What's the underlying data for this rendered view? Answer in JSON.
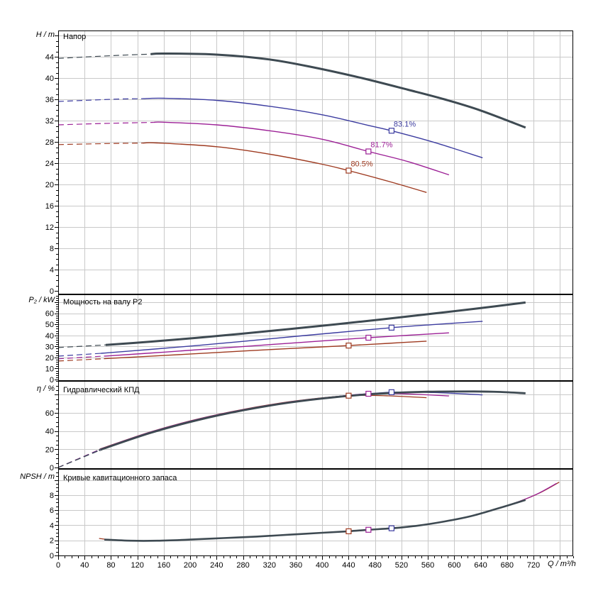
{
  "colors": {
    "main": "#3E4A52",
    "blue": "#3C3CA0",
    "magenta": "#9C2096",
    "red": "#9E3A20",
    "grid": "#C9C9C9",
    "frame": "#000000",
    "text": "#000000",
    "background": "#FFFFFF"
  },
  "chart_data": {
    "type": "line",
    "x": {
      "label": "Q / m³/h",
      "ticks": [
        0,
        40,
        80,
        120,
        160,
        200,
        240,
        280,
        320,
        360,
        400,
        440,
        480,
        520,
        560,
        600,
        640,
        680,
        720
      ],
      "minor_step": 10,
      "max": 780
    },
    "panels": [
      {
        "title": "Напор",
        "ylabel": "H / m",
        "yticks": [
          0,
          4,
          8,
          12,
          16,
          20,
          24,
          28,
          32,
          36,
          40,
          44
        ],
        "ylim": [
          0,
          48.9
        ],
        "series": [
          {
            "name": "series-4",
            "color": "red",
            "width": 1.4,
            "dash_until": 128,
            "points": [
              [
                0,
                27.5
              ],
              [
                80,
                27.7
              ],
              [
                150,
                27.8
              ],
              [
                240,
                27.1
              ],
              [
                320,
                25.7
              ],
              [
                400,
                23.8
              ],
              [
                440,
                22.6
              ],
              [
                500,
                20.6
              ],
              [
                558,
                18.5
              ]
            ]
          },
          {
            "name": "series-3",
            "color": "magenta",
            "width": 1.4,
            "dash_until": 145,
            "points": [
              [
                0,
                31.2
              ],
              [
                80,
                31.5
              ],
              [
                160,
                31.7
              ],
              [
                240,
                31.2
              ],
              [
                320,
                30.1
              ],
              [
                400,
                28.5
              ],
              [
                470,
                26.2
              ],
              [
                530,
                24.3
              ],
              [
                592,
                21.8
              ]
            ]
          },
          {
            "name": "series-2",
            "color": "blue",
            "width": 1.4,
            "dash_until": 128,
            "points": [
              [
                0,
                35.6
              ],
              [
                80,
                36.0
              ],
              [
                160,
                36.2
              ],
              [
                240,
                35.8
              ],
              [
                320,
                34.7
              ],
              [
                400,
                33.1
              ],
              [
                470,
                31.1
              ],
              [
                505,
                30.1
              ],
              [
                570,
                27.9
              ],
              [
                643,
                25.0
              ]
            ]
          },
          {
            "name": "series-1-main",
            "color": "main",
            "width": 3,
            "dash_until": 140,
            "points": [
              [
                0,
                43.7
              ],
              [
                80,
                44.2
              ],
              [
                160,
                44.6
              ],
              [
                240,
                44.4
              ],
              [
                320,
                43.5
              ],
              [
                387,
                42.0
              ],
              [
                460,
                40.0
              ],
              [
                530,
                37.8
              ],
              [
                585,
                36.0
              ],
              [
                640,
                33.9
              ],
              [
                708,
                30.7
              ]
            ]
          }
        ],
        "markers": [
          {
            "q": 440,
            "v": 22.6,
            "color": "red",
            "label": "80.5%"
          },
          {
            "q": 470,
            "v": 26.2,
            "color": "magenta",
            "label": "81.7%"
          },
          {
            "q": 505,
            "v": 30.1,
            "color": "blue",
            "label": "83.1%"
          }
        ]
      },
      {
        "title": "Мощность на валу P2",
        "ylabel": "P₂ / kW",
        "yticks": [
          0,
          10,
          20,
          30,
          40,
          50,
          60
        ],
        "ylim": [
          0,
          77
        ],
        "series": [
          {
            "name": "series-4",
            "color": "red",
            "width": 1.4,
            "dash_until": 70,
            "points": [
              [
                0,
                16.8
              ],
              [
                80,
                19.2
              ],
              [
                160,
                21.8
              ],
              [
                240,
                24.5
              ],
              [
                320,
                27.1
              ],
              [
                400,
                29.6
              ],
              [
                440,
                30.8
              ],
              [
                500,
                32.8
              ],
              [
                558,
                34.8
              ]
            ]
          },
          {
            "name": "series-3",
            "color": "magenta",
            "width": 1.4,
            "dash_until": 70,
            "points": [
              [
                0,
                18.8
              ],
              [
                80,
                21.6
              ],
              [
                160,
                24.8
              ],
              [
                240,
                28.2
              ],
              [
                320,
                31.6
              ],
              [
                400,
                35.0
              ],
              [
                470,
                37.9
              ],
              [
                530,
                40.1
              ],
              [
                592,
                42.3
              ]
            ]
          },
          {
            "name": "series-2",
            "color": "blue",
            "width": 1.4,
            "dash_until": 70,
            "points": [
              [
                0,
                21.2
              ],
              [
                70,
                24.0
              ],
              [
                140,
                27.3
              ],
              [
                210,
                30.8
              ],
              [
                280,
                34.6
              ],
              [
                350,
                38.6
              ],
              [
                420,
                42.4
              ],
              [
                505,
                47.0
              ],
              [
                570,
                49.9
              ],
              [
                643,
                52.8
              ]
            ]
          },
          {
            "name": "series-1-main",
            "color": "main",
            "width": 3,
            "dash_until": 72,
            "points": [
              [
                0,
                29.0
              ],
              [
                70,
                31.3
              ],
              [
                140,
                34.3
              ],
              [
                210,
                37.8
              ],
              [
                280,
                41.6
              ],
              [
                350,
                45.7
              ],
              [
                420,
                50.0
              ],
              [
                490,
                54.5
              ],
              [
                560,
                59.2
              ],
              [
                630,
                64.0
              ],
              [
                708,
                69.8
              ]
            ]
          }
        ],
        "markers": [
          {
            "q": 440,
            "v": 30.8,
            "color": "red"
          },
          {
            "q": 470,
            "v": 37.9,
            "color": "magenta"
          },
          {
            "q": 505,
            "v": 47.0,
            "color": "blue"
          }
        ]
      },
      {
        "title": "Гидравлический КПД",
        "ylabel": "η / %",
        "yticks": [
          0,
          20,
          40,
          60
        ],
        "ylim": [
          0,
          95
        ],
        "series": [
          {
            "name": "series-4",
            "color": "red",
            "width": 1.3,
            "dash_until": 65,
            "points": [
              [
                0,
                0
              ],
              [
                70,
                22.0
              ],
              [
                140,
                39.2
              ],
              [
                210,
                53.0
              ],
              [
                280,
                63.8
              ],
              [
                350,
                72.2
              ],
              [
                410,
                77.2
              ],
              [
                450,
                79.2
              ],
              [
                500,
                78.7
              ],
              [
                558,
                76.7
              ]
            ]
          },
          {
            "name": "series-3",
            "color": "magenta",
            "width": 1.3,
            "dash_until": 65,
            "points": [
              [
                0,
                0
              ],
              [
                70,
                21.8
              ],
              [
                140,
                39.0
              ],
              [
                210,
                52.8
              ],
              [
                280,
                63.6
              ],
              [
                350,
                72.0
              ],
              [
                410,
                77.0
              ],
              [
                470,
                81.0
              ],
              [
                530,
                80.7
              ],
              [
                592,
                78.6
              ]
            ]
          },
          {
            "name": "series-2",
            "color": "blue",
            "width": 1.3,
            "dash_until": 65,
            "points": [
              [
                0,
                0
              ],
              [
                70,
                21.5
              ],
              [
                140,
                38.7
              ],
              [
                210,
                52.5
              ],
              [
                280,
                63.3
              ],
              [
                350,
                71.8
              ],
              [
                420,
                77.8
              ],
              [
                505,
                82.7
              ],
              [
                570,
                82.3
              ],
              [
                643,
                79.8
              ]
            ]
          },
          {
            "name": "series-1-main",
            "color": "main",
            "width": 2.8,
            "dash_until": 65,
            "points": [
              [
                0,
                0
              ],
              [
                70,
                21.0
              ],
              [
                140,
                38.0
              ],
              [
                210,
                51.8
              ],
              [
                280,
                62.8
              ],
              [
                350,
                71.3
              ],
              [
                420,
                77.3
              ],
              [
                490,
                81.3
              ],
              [
                560,
                83.2
              ],
              [
                630,
                83.5
              ],
              [
                670,
                83.0
              ],
              [
                708,
                81.5
              ]
            ]
          }
        ],
        "markers": [
          {
            "q": 440,
            "v": 78.9,
            "color": "red"
          },
          {
            "q": 470,
            "v": 81.0,
            "color": "magenta"
          },
          {
            "q": 505,
            "v": 82.7,
            "color": "blue"
          }
        ]
      },
      {
        "title": "Кривые кавитационного запаса",
        "ylabel": "NPSH / m",
        "yticks": [
          0,
          2,
          4,
          6,
          8
        ],
        "ylim": [
          0,
          11.4
        ],
        "series": [
          {
            "name": "series-4",
            "color": "red",
            "width": 1.3,
            "dash_until": 70,
            "points": [
              [
                62,
                2.25
              ],
              [
                80,
                2.05
              ],
              [
                110,
                1.95
              ],
              [
                150,
                1.95
              ],
              [
                200,
                2.1
              ],
              [
                250,
                2.3
              ],
              [
                300,
                2.5
              ],
              [
                350,
                2.75
              ],
              [
                400,
                3.0
              ],
              [
                440,
                3.2
              ],
              [
                470,
                3.4
              ],
              [
                505,
                3.6
              ],
              [
                545,
                3.95
              ],
              [
                585,
                4.5
              ],
              [
                625,
                5.2
              ],
              [
                665,
                6.2
              ],
              [
                700,
                7.2
              ],
              [
                730,
                8.3
              ],
              [
                759,
                9.7
              ]
            ]
          },
          {
            "name": "series-3",
            "color": "magenta",
            "width": 1.3,
            "dash_until": 0,
            "points": [
              [
                70,
                2.1
              ],
              [
                110,
                1.96
              ],
              [
                150,
                1.96
              ],
              [
                200,
                2.11
              ],
              [
                250,
                2.31
              ],
              [
                300,
                2.51
              ],
              [
                350,
                2.76
              ],
              [
                400,
                3.01
              ],
              [
                440,
                3.21
              ],
              [
                470,
                3.41
              ],
              [
                505,
                3.61
              ],
              [
                545,
                3.96
              ],
              [
                585,
                4.51
              ],
              [
                625,
                5.21
              ],
              [
                665,
                6.21
              ],
              [
                700,
                7.21
              ],
              [
                727,
                8.2
              ],
              [
                755,
                9.55
              ]
            ]
          },
          {
            "name": "series-1-main",
            "color": "main",
            "width": 2.6,
            "dash_until": 0,
            "points": [
              [
                70,
                2.1
              ],
              [
                110,
                1.95
              ],
              [
                150,
                1.95
              ],
              [
                200,
                2.1
              ],
              [
                250,
                2.3
              ],
              [
                300,
                2.5
              ],
              [
                350,
                2.75
              ],
              [
                400,
                3.0
              ],
              [
                440,
                3.2
              ],
              [
                470,
                3.4
              ],
              [
                505,
                3.6
              ],
              [
                545,
                3.95
              ],
              [
                585,
                4.5
              ],
              [
                625,
                5.2
              ],
              [
                665,
                6.2
              ],
              [
                708,
                7.35
              ]
            ]
          }
        ],
        "markers": [
          {
            "q": 440,
            "v": 3.2,
            "color": "red"
          },
          {
            "q": 470,
            "v": 3.4,
            "color": "magenta"
          },
          {
            "q": 505,
            "v": 3.6,
            "color": "blue"
          }
        ]
      }
    ]
  }
}
